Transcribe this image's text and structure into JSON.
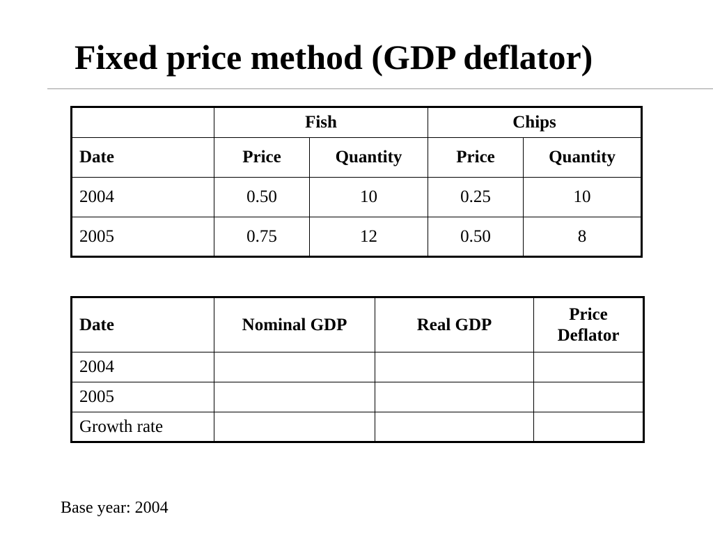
{
  "slide": {
    "title": "Fixed price method (GDP deflator)",
    "footnote": "Base year: 2004"
  },
  "data_table": {
    "group_headers": {
      "blank": "",
      "fish": "Fish",
      "chips": "Chips"
    },
    "columns": [
      "Date",
      "Price",
      "Quantity",
      "Price",
      "Quantity"
    ],
    "rows": [
      [
        "2004",
        "0.50",
        "10",
        "0.25",
        "10"
      ],
      [
        "2005",
        "0.75",
        "12",
        "0.50",
        "8"
      ]
    ]
  },
  "gdp_table": {
    "columns": [
      "Date",
      "Nominal GDP",
      "Real GDP",
      "Price Deflator"
    ],
    "rows": [
      [
        "2004",
        "",
        "",
        ""
      ],
      [
        "2005",
        "",
        "",
        ""
      ],
      [
        "Growth rate",
        "",
        "",
        ""
      ]
    ]
  }
}
